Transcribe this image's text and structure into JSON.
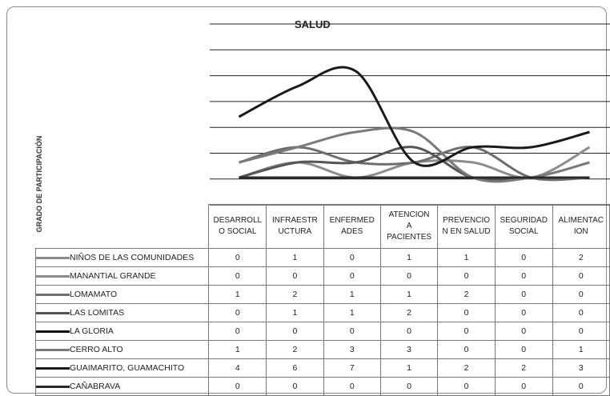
{
  "chart_data": {
    "type": "line",
    "title": "SALUD",
    "ylabel": "GRADO DE PARTICIPACIÓN",
    "categories": [
      "DESARROLLO SOCIAL",
      "INFRAESTRUCTURA",
      "ENFERMEDADES",
      "ATENCION A PACIENTES",
      "PREVENCION EN SALUD",
      "SEGURIDAD SOCIAL",
      "ALIMENTACION"
    ],
    "category_headers": [
      [
        "DESARROLL",
        "O SOCIAL"
      ],
      [
        "INFRAESTR",
        "UCTURA"
      ],
      [
        "ENFERMED",
        "ADES"
      ],
      [
        "ATENCION",
        "A",
        "PACIENTES"
      ],
      [
        "PREVENCIO",
        "N EN SALUD"
      ],
      [
        "SEGURIDAD",
        "SOCIAL"
      ],
      [
        "ALIMENTAC",
        "ION"
      ]
    ],
    "series": [
      {
        "name": "NIÑOS DE LAS COMUNIDADES",
        "values": [
          0,
          1,
          0,
          1,
          1,
          0,
          2
        ],
        "color": "#8c8c8c"
      },
      {
        "name": "MANANTIAL GRANDE",
        "values": [
          0,
          0,
          0,
          0,
          0,
          0,
          0
        ],
        "color": "#8c8c8c"
      },
      {
        "name": "LOMAMATO",
        "values": [
          1,
          2,
          1,
          1,
          2,
          0,
          0
        ],
        "color": "#6e6e6e"
      },
      {
        "name": "LAS LOMITAS",
        "values": [
          0,
          1,
          1,
          2,
          0,
          0,
          0
        ],
        "color": "#555555"
      },
      {
        "name": "LA GLORIA",
        "values": [
          0,
          0,
          0,
          0,
          0,
          0,
          0
        ],
        "color": "#111111"
      },
      {
        "name": "CERRO ALTO",
        "values": [
          1,
          2,
          3,
          3,
          0,
          0,
          1
        ],
        "color": "#7a7a7a"
      },
      {
        "name": "GUAIMARITO, GUAMACHITO",
        "values": [
          4,
          6,
          7,
          1,
          2,
          2,
          3
        ],
        "color": "#1a1a1a"
      },
      {
        "name": "CAÑABRAVA",
        "values": [
          0,
          0,
          0,
          0,
          0,
          0,
          0
        ],
        "color": "#2a2a2a"
      }
    ],
    "grid": true,
    "legend": "table-below"
  }
}
